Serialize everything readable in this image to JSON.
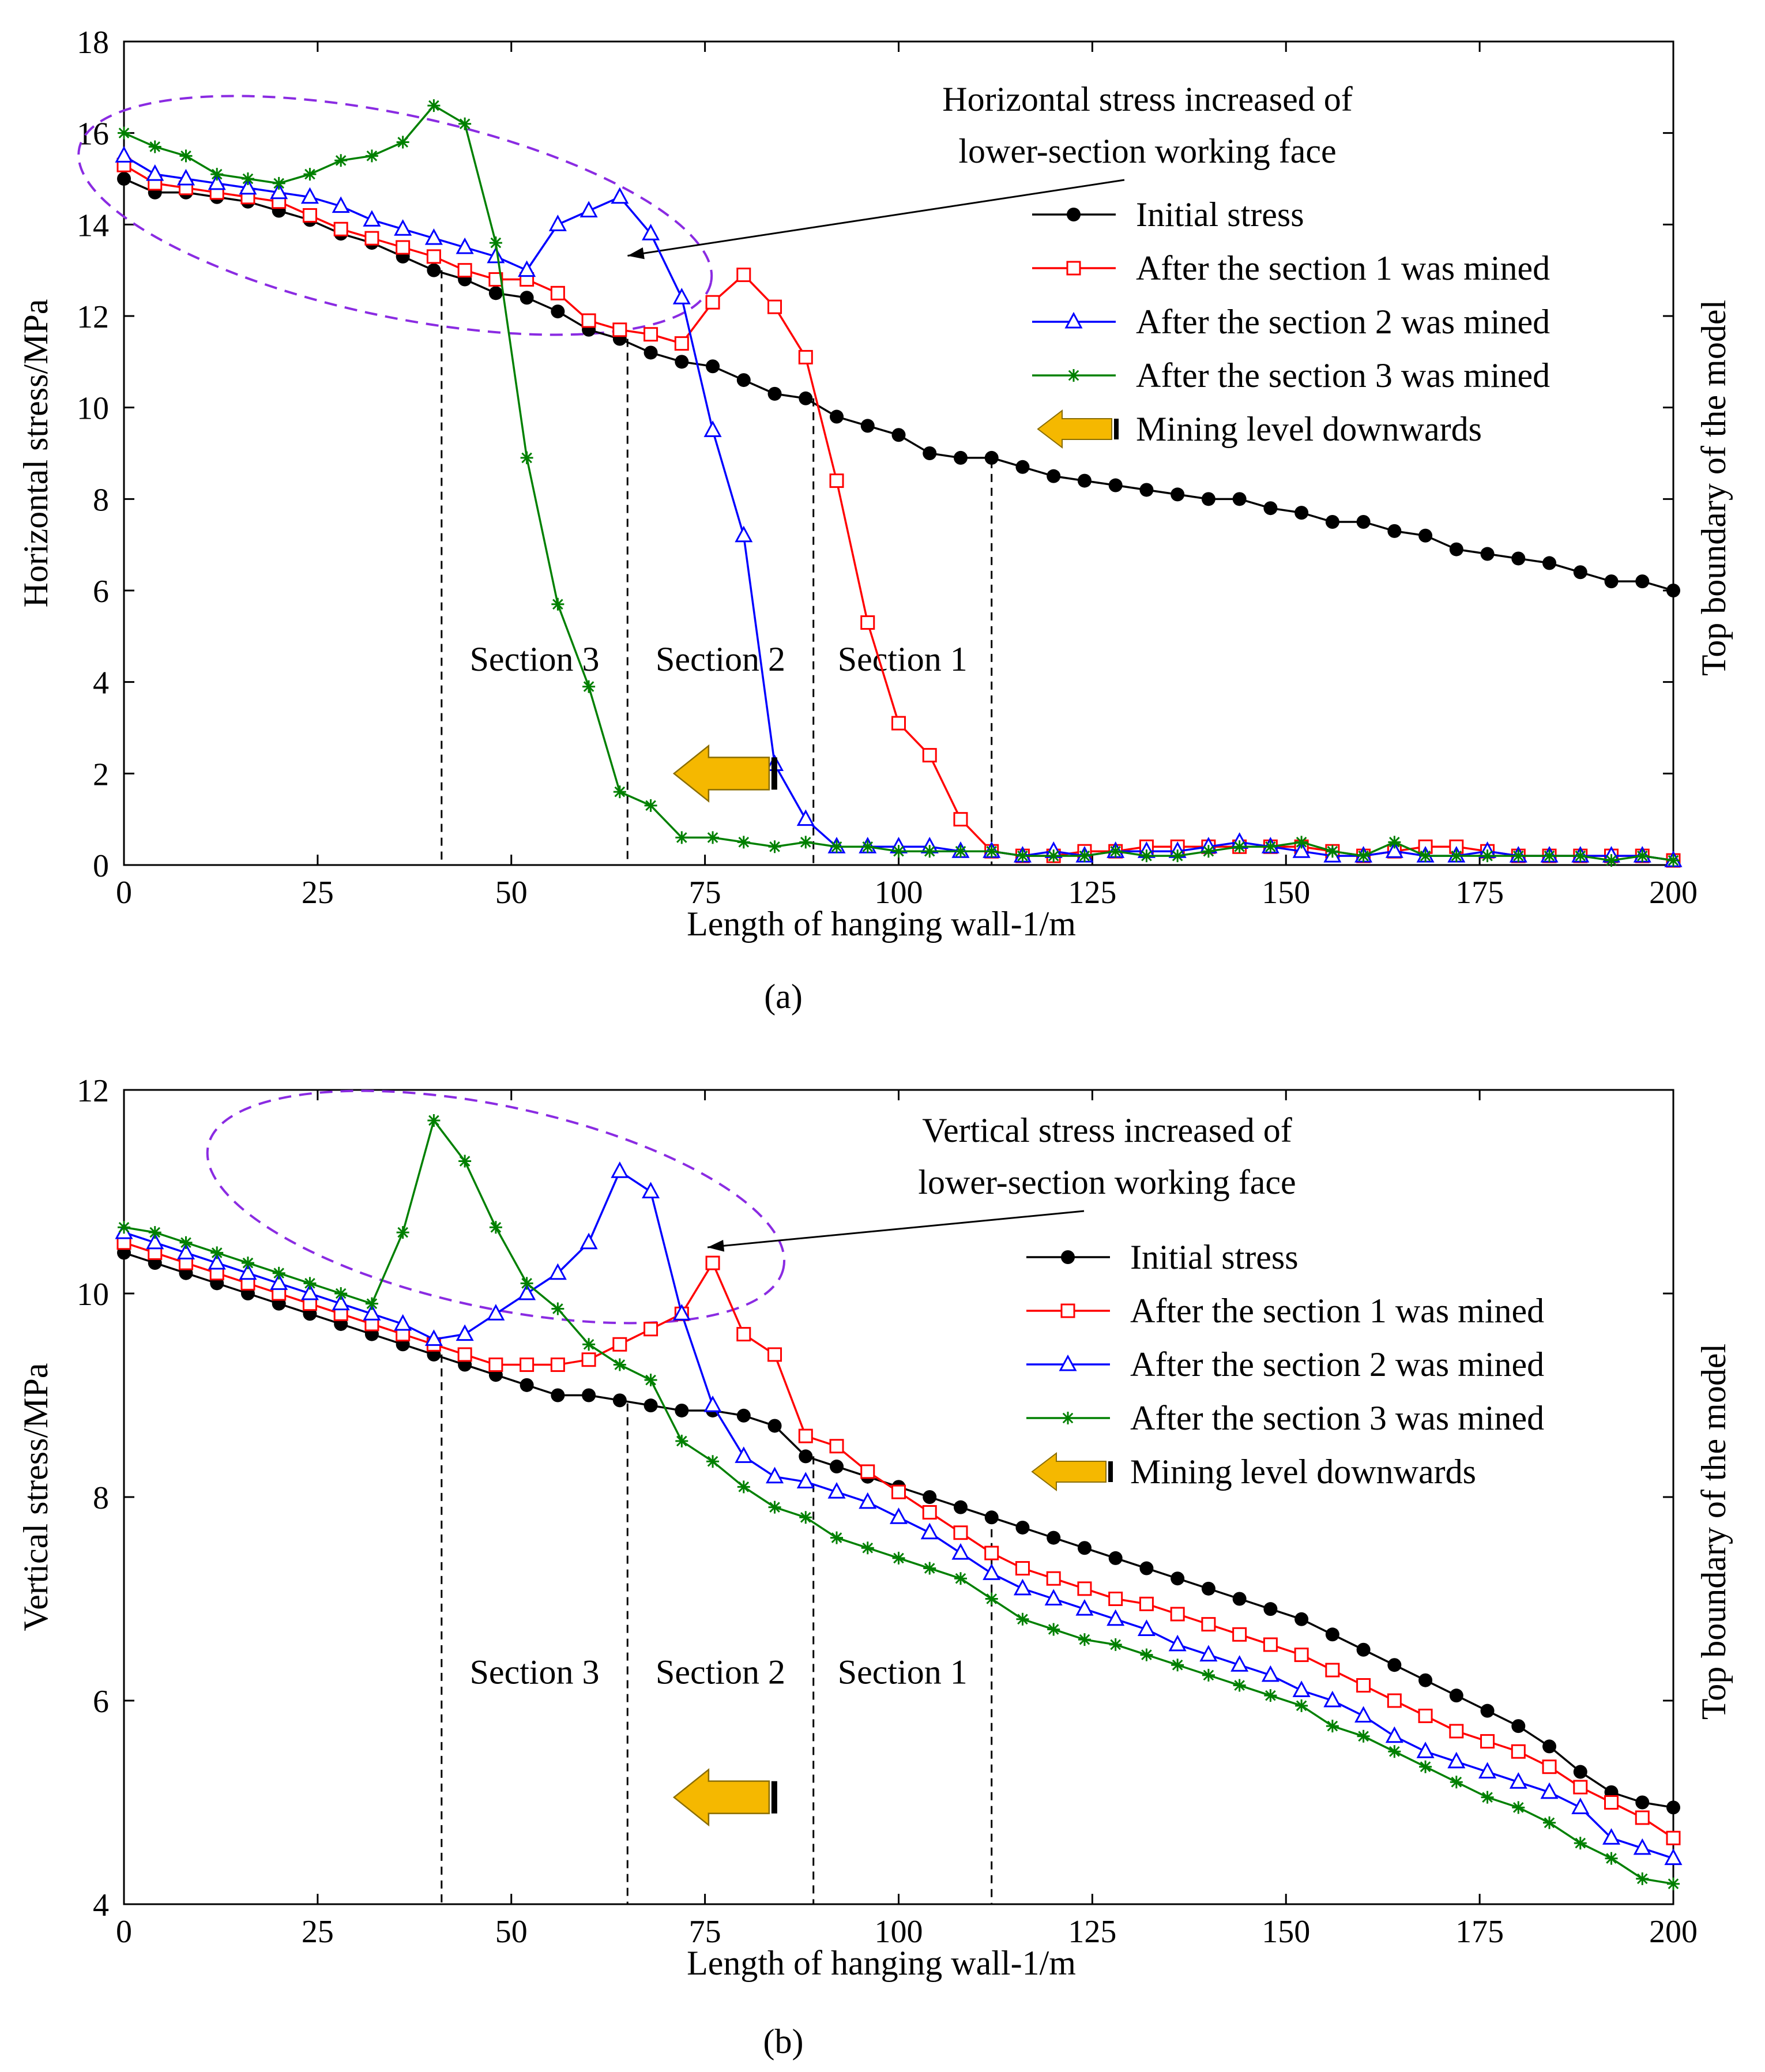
{
  "chart_data": [
    {
      "type": "line",
      "panel_label": "(a)",
      "xlabel": "Length of hanging wall-1/m",
      "ylabel": "Horizontal stress/MPa",
      "right_label": "Top boundary of the model",
      "xlim": [
        0,
        200
      ],
      "ylim": [
        0,
        18
      ],
      "xticks": [
        0,
        25,
        50,
        75,
        100,
        125,
        150,
        175,
        200
      ],
      "yticks": [
        0,
        2,
        4,
        6,
        8,
        10,
        12,
        14,
        16,
        18
      ],
      "grid": false,
      "legend_placement": "upper-right",
      "annotation": {
        "line1": "Horizontal stress increased of",
        "line2": "lower-section working face"
      },
      "arrow_label": "Mining level downwards",
      "sections": [
        {
          "label": "Section 3",
          "x_start": 41,
          "x_end": 65
        },
        {
          "label": "Section 2",
          "x_start": 65,
          "x_end": 89
        },
        {
          "label": "Section 1",
          "x_start": 89,
          "x_end": 112
        }
      ],
      "series": [
        {
          "name": "Initial stress",
          "color": "#000000",
          "marker": "dot",
          "x": [
            0,
            4,
            8,
            12,
            16,
            20,
            24,
            28,
            32,
            36,
            40,
            44,
            48,
            52,
            56,
            60,
            64,
            68,
            72,
            76,
            80,
            84,
            88,
            92,
            96,
            100,
            104,
            108,
            112,
            116,
            120,
            124,
            128,
            132,
            136,
            140,
            144,
            148,
            152,
            156,
            160,
            164,
            168,
            172,
            176,
            180,
            184,
            188,
            192,
            196,
            200
          ],
          "y": [
            15.0,
            14.7,
            14.7,
            14.6,
            14.5,
            14.3,
            14.1,
            13.8,
            13.6,
            13.3,
            13.0,
            12.8,
            12.5,
            12.4,
            12.1,
            11.7,
            11.5,
            11.2,
            11.0,
            10.9,
            10.6,
            10.3,
            10.2,
            9.8,
            9.6,
            9.4,
            9.0,
            8.9,
            8.9,
            8.7,
            8.5,
            8.4,
            8.3,
            8.2,
            8.1,
            8.0,
            8.0,
            7.8,
            7.7,
            7.5,
            7.5,
            7.3,
            7.2,
            6.9,
            6.8,
            6.7,
            6.6,
            6.4,
            6.2,
            6.2,
            6.0
          ]
        },
        {
          "name": "After the section 1 was mined",
          "color": "#ff0000",
          "marker": "square",
          "x": [
            0,
            4,
            8,
            12,
            16,
            20,
            24,
            28,
            32,
            36,
            40,
            44,
            48,
            52,
            56,
            60,
            64,
            68,
            72,
            76,
            80,
            84,
            88,
            92,
            96,
            100,
            104,
            108,
            112,
            116,
            120,
            124,
            128,
            132,
            136,
            140,
            144,
            148,
            152,
            156,
            160,
            164,
            168,
            172,
            176,
            180,
            184,
            188,
            192,
            196,
            200
          ],
          "y": [
            15.3,
            14.9,
            14.8,
            14.7,
            14.6,
            14.5,
            14.2,
            13.9,
            13.7,
            13.5,
            13.3,
            13.0,
            12.8,
            12.8,
            12.5,
            11.9,
            11.7,
            11.6,
            11.4,
            12.3,
            12.9,
            12.2,
            11.1,
            8.4,
            5.3,
            3.1,
            2.4,
            1.0,
            0.3,
            0.2,
            0.2,
            0.3,
            0.3,
            0.4,
            0.4,
            0.4,
            0.4,
            0.4,
            0.4,
            0.3,
            0.2,
            0.3,
            0.4,
            0.4,
            0.3,
            0.2,
            0.2,
            0.2,
            0.2,
            0.2,
            0.1
          ]
        },
        {
          "name": "After the section 2 was mined",
          "color": "#0000ff",
          "marker": "triangle",
          "x": [
            0,
            4,
            8,
            12,
            16,
            20,
            24,
            28,
            32,
            36,
            40,
            44,
            48,
            52,
            56,
            60,
            64,
            68,
            72,
            76,
            80,
            84,
            88,
            92,
            96,
            100,
            104,
            108,
            112,
            116,
            120,
            124,
            128,
            132,
            136,
            140,
            144,
            148,
            152,
            156,
            160,
            164,
            168,
            172,
            176,
            180,
            184,
            188,
            192,
            196,
            200
          ],
          "y": [
            15.5,
            15.1,
            15.0,
            14.9,
            14.8,
            14.7,
            14.6,
            14.4,
            14.1,
            13.9,
            13.7,
            13.5,
            13.3,
            13.0,
            14.0,
            14.3,
            14.6,
            13.8,
            12.4,
            9.5,
            7.2,
            2.2,
            1.0,
            0.4,
            0.4,
            0.4,
            0.4,
            0.3,
            0.3,
            0.2,
            0.3,
            0.2,
            0.3,
            0.3,
            0.3,
            0.4,
            0.5,
            0.4,
            0.3,
            0.2,
            0.2,
            0.3,
            0.2,
            0.2,
            0.3,
            0.2,
            0.2,
            0.2,
            0.2,
            0.2,
            0.1
          ]
        },
        {
          "name": "After the section 3 was mined",
          "color": "#008000",
          "marker": "star",
          "x": [
            0,
            4,
            8,
            12,
            16,
            20,
            24,
            28,
            32,
            36,
            40,
            44,
            48,
            52,
            56,
            60,
            64,
            68,
            72,
            76,
            80,
            84,
            88,
            92,
            96,
            100,
            104,
            108,
            112,
            116,
            120,
            124,
            128,
            132,
            136,
            140,
            144,
            148,
            152,
            156,
            160,
            164,
            168,
            172,
            176,
            180,
            184,
            188,
            192,
            196,
            200
          ],
          "y": [
            16.0,
            15.7,
            15.5,
            15.1,
            15.0,
            14.9,
            15.1,
            15.4,
            15.5,
            15.8,
            16.6,
            16.2,
            13.6,
            8.9,
            5.7,
            3.9,
            1.6,
            1.3,
            0.6,
            0.6,
            0.5,
            0.4,
            0.5,
            0.4,
            0.4,
            0.3,
            0.3,
            0.3,
            0.3,
            0.2,
            0.2,
            0.2,
            0.3,
            0.2,
            0.2,
            0.3,
            0.4,
            0.4,
            0.5,
            0.3,
            0.2,
            0.5,
            0.2,
            0.2,
            0.2,
            0.2,
            0.2,
            0.2,
            0.1,
            0.2,
            0.1
          ]
        }
      ]
    },
    {
      "type": "line",
      "panel_label": "(b)",
      "xlabel": "Length of hanging wall-1/m",
      "ylabel": "Vertical stress/MPa",
      "right_label": "Top boundary of the model",
      "xlim": [
        0,
        200
      ],
      "ylim": [
        4,
        12
      ],
      "xticks": [
        0,
        25,
        50,
        75,
        100,
        125,
        150,
        175,
        200
      ],
      "yticks": [
        4,
        6,
        8,
        10,
        12
      ],
      "grid": false,
      "legend_placement": "upper-right",
      "annotation": {
        "line1": "Vertical stress increased of",
        "line2": "lower-section working face"
      },
      "arrow_label": "Mining level downwards",
      "sections": [
        {
          "label": "Section 3",
          "x_start": 41,
          "x_end": 65
        },
        {
          "label": "Section 2",
          "x_start": 65,
          "x_end": 89
        },
        {
          "label": "Section 1",
          "x_start": 89,
          "x_end": 112
        }
      ],
      "series": [
        {
          "name": "Initial stress",
          "color": "#000000",
          "marker": "dot",
          "x": [
            0,
            4,
            8,
            12,
            16,
            20,
            24,
            28,
            32,
            36,
            40,
            44,
            48,
            52,
            56,
            60,
            64,
            68,
            72,
            76,
            80,
            84,
            88,
            92,
            96,
            100,
            104,
            108,
            112,
            116,
            120,
            124,
            128,
            132,
            136,
            140,
            144,
            148,
            152,
            156,
            160,
            164,
            168,
            172,
            176,
            180,
            184,
            188,
            192,
            196,
            200
          ],
          "y": [
            10.4,
            10.3,
            10.2,
            10.1,
            10.0,
            9.9,
            9.8,
            9.7,
            9.6,
            9.5,
            9.4,
            9.3,
            9.2,
            9.1,
            9.0,
            9.0,
            8.95,
            8.9,
            8.85,
            8.85,
            8.8,
            8.7,
            8.4,
            8.3,
            8.2,
            8.1,
            8.0,
            7.9,
            7.8,
            7.7,
            7.6,
            7.5,
            7.4,
            7.3,
            7.2,
            7.1,
            7.0,
            6.9,
            6.8,
            6.65,
            6.5,
            6.35,
            6.2,
            6.05,
            5.9,
            5.75,
            5.55,
            5.3,
            5.1,
            5.0,
            4.95
          ]
        },
        {
          "name": "After the section 1 was mined",
          "color": "#ff0000",
          "marker": "square",
          "x": [
            0,
            4,
            8,
            12,
            16,
            20,
            24,
            28,
            32,
            36,
            40,
            44,
            48,
            52,
            56,
            60,
            64,
            68,
            72,
            76,
            80,
            84,
            88,
            92,
            96,
            100,
            104,
            108,
            112,
            116,
            120,
            124,
            128,
            132,
            136,
            140,
            144,
            148,
            152,
            156,
            160,
            164,
            168,
            172,
            176,
            180,
            184,
            188,
            192,
            196,
            200
          ],
          "y": [
            10.5,
            10.4,
            10.3,
            10.2,
            10.1,
            10.0,
            9.9,
            9.8,
            9.7,
            9.6,
            9.5,
            9.4,
            9.3,
            9.3,
            9.3,
            9.35,
            9.5,
            9.65,
            9.8,
            10.3,
            9.6,
            9.4,
            8.6,
            8.5,
            8.25,
            8.05,
            7.85,
            7.65,
            7.45,
            7.3,
            7.2,
            7.1,
            7.0,
            6.95,
            6.85,
            6.75,
            6.65,
            6.55,
            6.45,
            6.3,
            6.15,
            6.0,
            5.85,
            5.7,
            5.6,
            5.5,
            5.35,
            5.15,
            5.0,
            4.85,
            4.65
          ]
        },
        {
          "name": "After the section 2 was mined",
          "color": "#0000ff",
          "marker": "triangle",
          "x": [
            0,
            4,
            8,
            12,
            16,
            20,
            24,
            28,
            32,
            36,
            40,
            44,
            48,
            52,
            56,
            60,
            64,
            68,
            72,
            76,
            80,
            84,
            88,
            92,
            96,
            100,
            104,
            108,
            112,
            116,
            120,
            124,
            128,
            132,
            136,
            140,
            144,
            148,
            152,
            156,
            160,
            164,
            168,
            172,
            176,
            180,
            184,
            188,
            192,
            196,
            200
          ],
          "y": [
            10.6,
            10.5,
            10.4,
            10.3,
            10.2,
            10.1,
            10.0,
            9.9,
            9.8,
            9.7,
            9.55,
            9.6,
            9.8,
            10.0,
            10.2,
            10.5,
            11.2,
            11.0,
            9.8,
            8.9,
            8.4,
            8.2,
            8.15,
            8.05,
            7.95,
            7.8,
            7.65,
            7.45,
            7.25,
            7.1,
            7.0,
            6.9,
            6.8,
            6.7,
            6.55,
            6.45,
            6.35,
            6.25,
            6.1,
            6.0,
            5.85,
            5.65,
            5.5,
            5.4,
            5.3,
            5.2,
            5.1,
            4.95,
            4.65,
            4.55,
            4.45
          ]
        },
        {
          "name": "After the section 3 was mined",
          "color": "#008000",
          "marker": "star",
          "x": [
            0,
            4,
            8,
            12,
            16,
            20,
            24,
            28,
            32,
            36,
            40,
            44,
            48,
            52,
            56,
            60,
            64,
            68,
            72,
            76,
            80,
            84,
            88,
            92,
            96,
            100,
            104,
            108,
            112,
            116,
            120,
            124,
            128,
            132,
            136,
            140,
            144,
            148,
            152,
            156,
            160,
            164,
            168,
            172,
            176,
            180,
            184,
            188,
            192,
            196,
            200
          ],
          "y": [
            10.65,
            10.6,
            10.5,
            10.4,
            10.3,
            10.2,
            10.1,
            10.0,
            9.9,
            10.6,
            11.7,
            11.3,
            10.65,
            10.1,
            9.85,
            9.5,
            9.3,
            9.15,
            8.55,
            8.35,
            8.1,
            7.9,
            7.8,
            7.6,
            7.5,
            7.4,
            7.3,
            7.2,
            7.0,
            6.8,
            6.7,
            6.6,
            6.55,
            6.45,
            6.35,
            6.25,
            6.15,
            6.05,
            5.95,
            5.75,
            5.65,
            5.5,
            5.35,
            5.2,
            5.05,
            4.95,
            4.8,
            4.6,
            4.45,
            4.25,
            4.2
          ]
        }
      ]
    }
  ]
}
